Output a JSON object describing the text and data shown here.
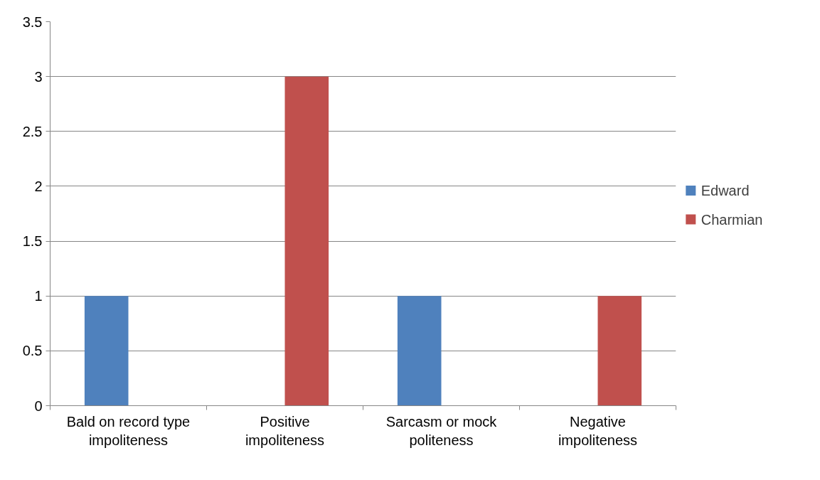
{
  "chart_data": {
    "type": "bar",
    "categories": [
      "Bald on record type impoliteness",
      "Positive impoliteness",
      "Sarcasm or mock politeness",
      "Negative impoliteness"
    ],
    "series": [
      {
        "name": "Edward",
        "color": "#4f81bd",
        "values": [
          1,
          0,
          1,
          0
        ]
      },
      {
        "name": "Charmian",
        "color": "#c0504d",
        "values": [
          0,
          3,
          0,
          1
        ]
      }
    ],
    "ylim": [
      0,
      3.5
    ],
    "yticks": [
      0,
      0.5,
      1,
      1.5,
      2,
      2.5,
      3,
      3.5
    ],
    "grid": "y",
    "legend": "right"
  }
}
